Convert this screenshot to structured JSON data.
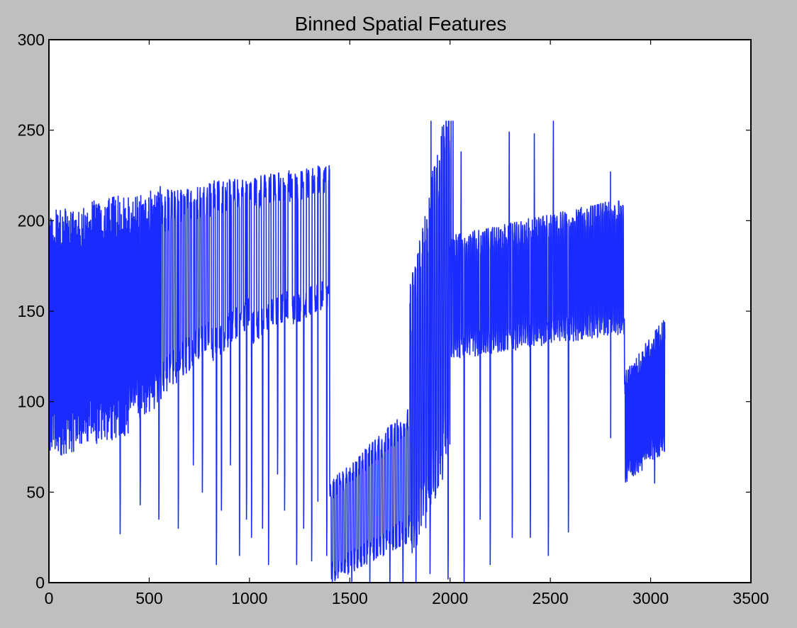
{
  "chart_data": {
    "type": "line",
    "title": "Binned Spatial Features",
    "xlabel": "",
    "ylabel": "",
    "xlim": [
      0,
      3500
    ],
    "ylim": [
      0,
      300
    ],
    "x_ticks": [
      0,
      500,
      1000,
      1500,
      2000,
      2500,
      3000,
      3500
    ],
    "y_ticks": [
      0,
      50,
      100,
      150,
      200,
      250,
      300
    ],
    "x_tick_labels": [
      "0",
      "500",
      "1000",
      "1500",
      "2000",
      "2500",
      "3000",
      "3500"
    ],
    "y_tick_labels": [
      "0",
      "50",
      "100",
      "150",
      "200",
      "250",
      "300"
    ],
    "grid": false,
    "legend": "none",
    "colors": {
      "series": "#1a2bff",
      "figure_background": "#bfbfbf",
      "axes_background": "#ffffff"
    },
    "series": [
      {
        "x_start": 0,
        "x_step": 1,
        "count": 3072,
        "segments": [
          {
            "x": [
              0,
              400
            ],
            "lo": [
              82,
              95
            ],
            "hi": [
              192,
              202
            ],
            "period": 2,
            "dips": [
              [
                355,
                27
              ]
            ]
          },
          {
            "x": [
              400,
              560
            ],
            "lo": [
              100,
              110
            ],
            "hi": [
              200,
              207
            ],
            "period": 4,
            "dips": [
              [
                455,
                43
              ],
              [
                548,
                35
              ]
            ]
          },
          {
            "x": [
              560,
              800
            ],
            "lo": [
              110,
              140
            ],
            "hi": [
              205,
              212
            ],
            "period": 8,
            "dips": [
              [
                645,
                30
              ],
              [
                720,
                65
              ],
              [
                765,
                50
              ]
            ]
          },
          {
            "x": [
              800,
              1000
            ],
            "lo": [
              130,
              150
            ],
            "hi": [
              212,
              216
            ],
            "period": 10,
            "dips": [
              [
                835,
                10
              ],
              [
                860,
                40
              ],
              [
                905,
                65
              ],
              [
                950,
                15
              ],
              [
                985,
                35
              ]
            ]
          },
          {
            "x": [
              1000,
              1200
            ],
            "lo": [
              140,
              155
            ],
            "hi": [
              215,
              220
            ],
            "period": 12,
            "dips": [
              [
                1010,
                25
              ],
              [
                1065,
                30
              ],
              [
                1095,
                10
              ],
              [
                1140,
                60
              ],
              [
                1175,
                40
              ]
            ]
          },
          {
            "x": [
              1200,
              1400
            ],
            "lo": [
              150,
              160
            ],
            "hi": [
              218,
              224
            ],
            "period": 14,
            "dips": [
              [
                1235,
                10
              ],
              [
                1270,
                30
              ],
              [
                1310,
                12
              ],
              [
                1340,
                25
              ],
              [
                1385,
                15
              ]
            ]
          },
          {
            "x": [
              1400,
              1800
            ],
            "lo": [
              5,
              30
            ],
            "hi": [
              50,
              90
            ],
            "period": 8,
            "dips": [
              [
                1510,
                0
              ],
              [
                1600,
                0
              ],
              [
                1700,
                0
              ],
              [
                1765,
                0
              ]
            ]
          },
          {
            "x": [
              1800,
              2000
            ],
            "lo": [
              20,
              90
            ],
            "hi": [
              150,
              254
            ],
            "period": 6,
            "dips": [
              [
                1830,
                0
              ],
              [
                1900,
                5
              ],
              [
                1990,
                2
              ]
            ]
          },
          {
            "x": [
              2000,
              2870
            ],
            "lo": [
              130,
              145
            ],
            "hi": [
              185,
              205
            ],
            "period": 5,
            "dips": [
              [
                2070,
                0
              ],
              [
                2150,
                35
              ],
              [
                2200,
                10
              ],
              [
                2310,
                25
              ],
              [
                2400,
                25
              ],
              [
                2490,
                15
              ],
              [
                2590,
                28
              ],
              [
                2800,
                60
              ],
              [
                2870,
                40
              ]
            ]
          },
          {
            "x": [
              2870,
              3072
            ],
            "lo": [
              60,
              80
            ],
            "hi": [
              110,
              140
            ],
            "period": 4,
            "dips": [
              [
                3020,
                55
              ]
            ]
          }
        ],
        "peaks": [
          [
            1905,
            255
          ],
          [
            2005,
            255
          ],
          [
            2015,
            255
          ],
          [
            2295,
            249
          ],
          [
            2420,
            248
          ],
          [
            2515,
            255
          ],
          [
            1935,
            226
          ],
          [
            2055,
            238
          ],
          [
            2800,
            227
          ],
          [
            1340,
            224
          ],
          [
            1195,
            222
          ],
          [
            1395,
            222
          ]
        ]
      }
    ]
  }
}
